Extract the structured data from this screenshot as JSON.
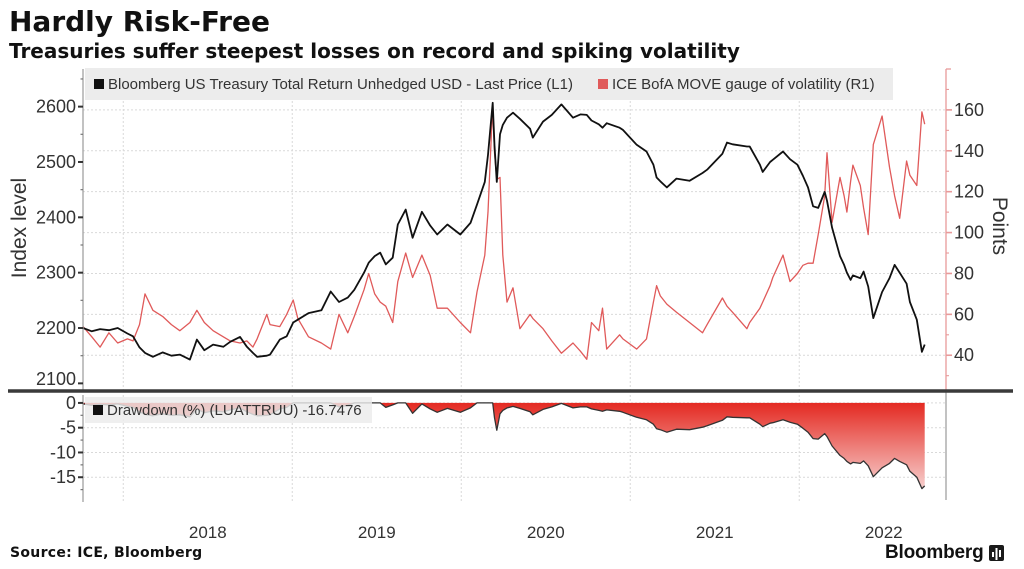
{
  "header": {
    "title": "Hardly Risk-Free",
    "subtitle": "Treasuries suffer steepest losses on record and spiking volatility"
  },
  "footer": {
    "source": "Source: ICE, Bloomberg",
    "brand": "Bloomberg",
    "brand_icon": "bloomberg-terminal-icon"
  },
  "colors": {
    "treasury": "#111111",
    "move": "#e05a5a",
    "right_axis": "#e89a9a",
    "drawdown_fill_top": "#e42a22",
    "drawdown_fill_bottom": "#f7cfcd",
    "drawdown_line": "#333333",
    "divider": "#3a3a3a"
  },
  "chart_data": [
    {
      "type": "line",
      "panel": "upper",
      "title": "Hardly Risk-Free",
      "subtitle": "Treasuries suffer steepest losses on record and spiking volatility",
      "legend_position": "top-left",
      "legend": [
        {
          "label": "Bloomberg US Treasury Total Return Unhedged USD - Last Price (L1)",
          "color": "#111111"
        },
        {
          "label": "ICE BofA MOVE gauge of volatility (R1)",
          "color": "#e05a5a"
        }
      ],
      "xlabel": "",
      "x_range": [
        "2017-10-06",
        "2022-11-14"
      ],
      "y_left": {
        "label": "Index level",
        "range": [
          2088,
          2668
        ],
        "ticks": [
          2100,
          2200,
          2300,
          2400,
          2500,
          2600
        ]
      },
      "y_right": {
        "label": "Points",
        "range": [
          23,
          180
        ],
        "ticks": [
          40,
          60,
          80,
          100,
          120,
          140,
          160
        ]
      },
      "grid": true,
      "x": [
        "2017-10-06",
        "2017-10-25",
        "2017-11-12",
        "2017-12-01",
        "2017-12-20",
        "2018-01-10",
        "2018-01-22",
        "2018-02-05",
        "2018-02-17",
        "2018-03-06",
        "2018-03-27",
        "2018-04-15",
        "2018-05-03",
        "2018-05-25",
        "2018-06-09",
        "2018-06-25",
        "2018-07-14",
        "2018-08-05",
        "2018-08-20",
        "2018-09-10",
        "2018-09-25",
        "2018-10-08",
        "2018-10-17",
        "2018-11-07",
        "2018-11-14",
        "2018-12-05",
        "2018-12-20",
        "2019-01-03",
        "2019-01-13",
        "2019-02-05",
        "2019-03-05",
        "2019-03-25",
        "2019-04-12",
        "2019-05-01",
        "2019-05-15",
        "2019-06-05",
        "2019-06-15",
        "2019-06-28",
        "2019-07-10",
        "2019-07-22",
        "2019-08-06",
        "2019-08-17",
        "2019-09-03",
        "2019-09-18",
        "2019-10-08",
        "2019-10-26",
        "2019-11-10",
        "2019-12-02",
        "2019-12-30",
        "2020-01-21",
        "2020-02-04",
        "2020-02-21",
        "2020-02-28",
        "2020-03-09",
        "2020-03-13",
        "2020-03-18",
        "2020-03-25",
        "2020-03-31",
        "2020-04-09",
        "2020-04-22",
        "2020-05-07",
        "2020-05-29",
        "2020-06-04",
        "2020-06-26",
        "2020-07-15",
        "2020-08-05",
        "2020-08-30",
        "2020-09-15",
        "2020-09-29",
        "2020-10-09",
        "2020-10-25",
        "2020-11-02",
        "2020-11-11",
        "2020-12-09",
        "2020-12-16",
        "2021-01-15",
        "2021-02-05",
        "2021-02-20",
        "2021-02-27",
        "2021-03-07",
        "2021-03-21",
        "2021-04-11",
        "2021-05-09",
        "2021-06-06",
        "2021-06-16",
        "2021-07-19",
        "2021-07-29",
        "2021-08-10",
        "2021-09-10",
        "2021-09-16",
        "2021-10-08",
        "2021-10-14",
        "2021-10-30",
        "2021-11-05",
        "2021-11-27",
        "2021-12-12",
        "2021-12-28",
        "2022-01-09",
        "2022-01-20",
        "2022-01-31",
        "2022-02-11",
        "2022-02-25",
        "2022-03-02",
        "2022-03-13",
        "2022-03-30",
        "2022-04-08",
        "2022-04-14",
        "2022-04-22",
        "2022-04-27",
        "2022-05-13",
        "2022-05-20",
        "2022-05-30",
        "2022-06-10",
        "2022-06-29",
        "2022-07-15",
        "2022-07-26",
        "2022-08-06",
        "2022-08-21",
        "2022-08-28",
        "2022-09-12",
        "2022-09-23",
        "2022-09-29"
      ],
      "series": [
        {
          "name": "Bloomberg US Treasury Total Return Unhedged USD - Last Price",
          "axis": "left",
          "values": [
            2200,
            2194,
            2198,
            2196,
            2200,
            2190,
            2185,
            2165,
            2155,
            2148,
            2156,
            2150,
            2152,
            2143,
            2179,
            2160,
            2170,
            2166,
            2175,
            2184,
            2166,
            2155,
            2148,
            2150,
            2152,
            2179,
            2185,
            2210,
            2215,
            2227,
            2232,
            2266,
            2247,
            2255,
            2269,
            2300,
            2318,
            2330,
            2336,
            2315,
            2327,
            2387,
            2414,
            2363,
            2410,
            2385,
            2369,
            2387,
            2369,
            2390,
            2423,
            2464,
            2513,
            2607,
            2530,
            2464,
            2550,
            2567,
            2580,
            2589,
            2578,
            2560,
            2544,
            2573,
            2585,
            2604,
            2580,
            2586,
            2585,
            2575,
            2568,
            2562,
            2570,
            2562,
            2558,
            2531,
            2519,
            2495,
            2472,
            2465,
            2454,
            2470,
            2466,
            2480,
            2486,
            2515,
            2535,
            2532,
            2528,
            2528,
            2495,
            2482,
            2500,
            2504,
            2519,
            2505,
            2495,
            2475,
            2454,
            2420,
            2417,
            2446,
            2430,
            2381,
            2330,
            2314,
            2300,
            2287,
            2295,
            2290,
            2302,
            2275,
            2218,
            2265,
            2290,
            2314,
            2300,
            2280,
            2247,
            2215,
            2157,
            2170
          ]
        },
        {
          "name": "ICE BofA MOVE gauge of volatility",
          "axis": "right",
          "values": [
            54,
            49,
            44,
            51,
            46,
            48,
            47,
            55,
            70,
            62,
            59,
            55,
            52,
            56,
            62,
            56,
            52,
            49,
            47,
            46,
            47,
            44,
            48,
            60,
            55,
            54,
            60,
            67,
            58,
            49,
            46,
            43,
            60,
            51,
            59,
            72,
            80,
            70,
            66,
            64,
            56,
            76,
            90,
            78,
            89,
            79,
            63,
            63,
            56,
            51,
            71,
            89,
            110,
            163,
            139,
            126,
            127,
            89,
            66,
            73,
            53,
            60,
            58,
            53,
            47,
            41,
            46,
            42,
            38,
            56,
            52,
            63,
            43,
            50,
            48,
            43,
            48,
            66,
            74,
            69,
            65,
            61,
            56,
            51,
            55,
            68,
            64,
            61,
            53,
            56,
            63,
            66,
            74,
            78,
            89,
            76,
            80,
            84,
            85,
            85,
            99,
            118,
            139,
            105,
            127,
            118,
            110,
            125,
            133,
            123,
            112,
            99,
            143,
            157,
            132,
            118,
            107,
            135,
            128,
            123,
            159,
            153
          ]
        }
      ]
    },
    {
      "type": "area",
      "panel": "lower",
      "legend_position": "top-left",
      "legend": [
        {
          "label": "Drawdown (%) (LUATTRUU)",
          "last_value": "-16.7476",
          "color": "#111111"
        }
      ],
      "x_range": [
        "2017-10-06",
        "2022-11-14"
      ],
      "x_ticks": [
        "2018",
        "2019",
        "2020",
        "2021",
        "2022"
      ],
      "y": {
        "label": "",
        "range": [
          -20,
          1.6
        ],
        "ticks": [
          0,
          -5,
          -10,
          -15
        ]
      },
      "grid": true,
      "x": [
        "2017-10-06",
        "2017-10-25",
        "2017-11-12",
        "2017-12-01",
        "2017-12-20",
        "2018-01-10",
        "2018-01-22",
        "2018-02-05",
        "2018-02-17",
        "2018-03-06",
        "2018-03-27",
        "2018-04-15",
        "2018-05-03",
        "2018-05-25",
        "2018-06-09",
        "2018-06-25",
        "2018-07-14",
        "2018-08-05",
        "2018-08-20",
        "2018-09-10",
        "2018-09-25",
        "2018-10-08",
        "2018-10-17",
        "2018-11-07",
        "2018-11-14",
        "2018-12-05",
        "2018-12-20",
        "2019-01-03",
        "2019-01-13",
        "2019-02-05",
        "2019-03-05",
        "2019-03-25",
        "2019-04-12",
        "2019-05-01",
        "2019-05-15",
        "2019-06-05",
        "2019-06-15",
        "2019-06-28",
        "2019-07-10",
        "2019-07-22",
        "2019-08-06",
        "2019-08-17",
        "2019-09-03",
        "2019-09-18",
        "2019-10-08",
        "2019-10-26",
        "2019-11-10",
        "2019-12-02",
        "2019-12-30",
        "2020-01-21",
        "2020-02-04",
        "2020-02-21",
        "2020-02-28",
        "2020-03-09",
        "2020-03-13",
        "2020-03-18",
        "2020-03-25",
        "2020-03-31",
        "2020-04-09",
        "2020-04-22",
        "2020-05-07",
        "2020-05-29",
        "2020-06-04",
        "2020-06-26",
        "2020-07-15",
        "2020-08-05",
        "2020-08-30",
        "2020-09-15",
        "2020-09-29",
        "2020-10-09",
        "2020-10-25",
        "2020-11-02",
        "2020-11-11",
        "2020-12-09",
        "2020-12-16",
        "2021-01-15",
        "2021-02-05",
        "2021-02-20",
        "2021-02-27",
        "2021-03-07",
        "2021-03-21",
        "2021-04-11",
        "2021-05-09",
        "2021-06-06",
        "2021-06-16",
        "2021-07-19",
        "2021-07-29",
        "2021-08-10",
        "2021-09-10",
        "2021-09-16",
        "2021-10-08",
        "2021-10-14",
        "2021-10-30",
        "2021-11-05",
        "2021-11-27",
        "2021-12-12",
        "2021-12-28",
        "2022-01-09",
        "2022-01-20",
        "2022-01-31",
        "2022-02-11",
        "2022-02-25",
        "2022-03-02",
        "2022-03-13",
        "2022-03-30",
        "2022-04-08",
        "2022-04-14",
        "2022-04-22",
        "2022-04-27",
        "2022-05-13",
        "2022-05-20",
        "2022-05-30",
        "2022-06-10",
        "2022-06-29",
        "2022-07-15",
        "2022-07-26",
        "2022-08-06",
        "2022-08-21",
        "2022-08-28",
        "2022-09-12",
        "2022-09-23",
        "2022-09-29"
      ],
      "series": [
        {
          "name": "Drawdown (%) (LUATTRUU)",
          "values": [
            -0.2,
            -0.5,
            -0.3,
            -0.4,
            -0.2,
            -0.7,
            -0.9,
            -1.8,
            -2.3,
            -2.6,
            -2.2,
            -2.5,
            -2.4,
            -2.8,
            -1.2,
            -2.0,
            -1.6,
            -1.8,
            -1.4,
            -1.0,
            -1.8,
            -2.3,
            -2.6,
            -2.5,
            -2.4,
            -1.2,
            -0.9,
            0,
            0,
            0,
            0,
            0,
            -0.8,
            -0.5,
            0,
            0,
            0,
            0,
            0,
            -0.9,
            -0.4,
            0,
            0,
            -2.1,
            -0.2,
            -1.2,
            -1.9,
            -1.1,
            -1.9,
            -1.0,
            0,
            0,
            0,
            0,
            -3.0,
            -5.5,
            -2.2,
            -1.5,
            -1.0,
            -0.7,
            -1.1,
            -1.8,
            -2.4,
            -1.3,
            -0.8,
            -0.1,
            -1.0,
            -0.8,
            -0.8,
            -1.2,
            -1.5,
            -1.7,
            -1.4,
            -1.7,
            -1.9,
            -2.9,
            -3.4,
            -4.3,
            -5.2,
            -5.4,
            -5.9,
            -5.3,
            -5.4,
            -4.9,
            -4.6,
            -3.5,
            -2.8,
            -2.9,
            -3.0,
            -3.0,
            -4.3,
            -4.8,
            -4.1,
            -4.0,
            -3.4,
            -3.9,
            -4.3,
            -5.1,
            -5.9,
            -7.2,
            -7.3,
            -6.2,
            -6.8,
            -8.7,
            -10.6,
            -11.2,
            -11.8,
            -12.3,
            -12.0,
            -12.2,
            -11.7,
            -12.7,
            -14.9,
            -13.1,
            -12.2,
            -11.2,
            -11.8,
            -12.5,
            -13.8,
            -15.0,
            -17.3,
            -16.7476
          ]
        }
      ]
    }
  ]
}
